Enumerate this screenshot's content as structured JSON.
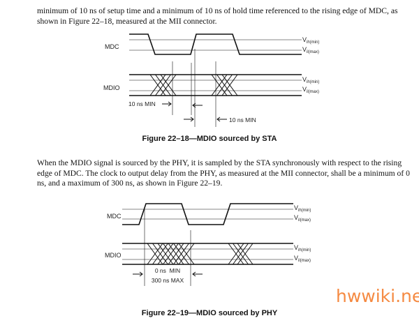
{
  "paragraph_1": "minimum of 10 ns of setup time and a minimum of 10 ns of hold time referenced to the rising edge of MDC, as shown in Figure 22–18, measured at the MII connector.",
  "figure_18": {
    "caption": "Figure 22–18—MDIO sourced by STA",
    "mdc_label": "MDC",
    "mdio_label": "MDIO",
    "v": "V",
    "vih": "ih(min)",
    "vil": "il(max)",
    "setup_label": "10 ns MIN",
    "hold_label": "10 ns MIN"
  },
  "paragraph_2": "When the MDIO signal is sourced by the PHY, it is sampled by the STA synchronously with respect to the rising edge of MDC. The clock to output delay from the PHY, as measured at the MII connector, shall be a minimum of 0 ns, and a maximum of 300 ns, as shown in Figure 22–19.",
  "figure_19": {
    "caption": "Figure 22–19—MDIO sourced by PHY",
    "mdc_label": "MDC",
    "mdio_label": "MDIO",
    "v": "V",
    "vih": "ih(min)",
    "vil": "il(max)",
    "min_label": "0 ns  MIN",
    "max_label": "300 ns MAX"
  },
  "watermark": "hwwiki.net",
  "colors": {
    "watermark": "#f58a42"
  }
}
